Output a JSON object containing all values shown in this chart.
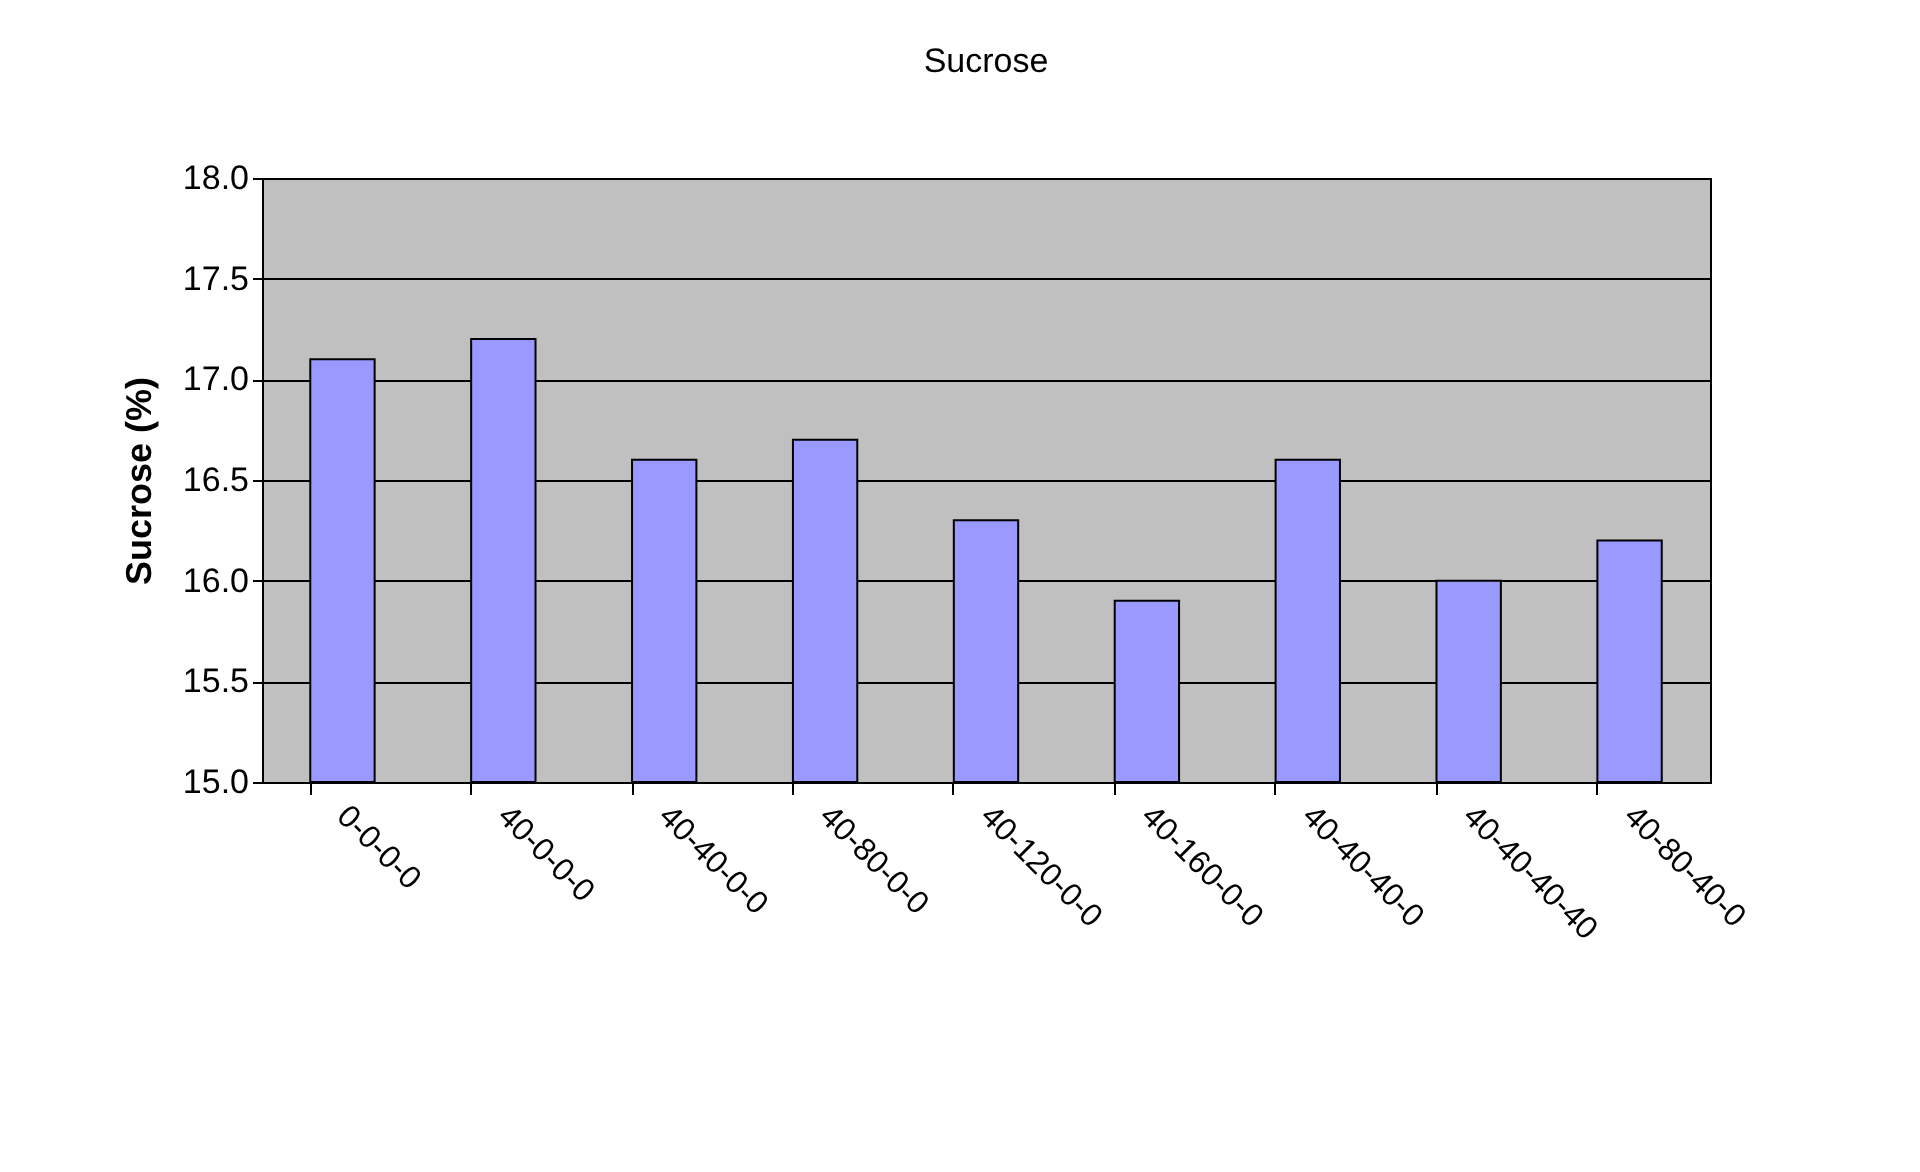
{
  "chart_data": {
    "type": "bar",
    "title": "Sucrose",
    "ylabel": "Sucrose (%)",
    "categories": [
      "0-0-0-0",
      "40-0-0-0",
      "40-40-0-0",
      "40-80-0-0",
      "40-120-0-0",
      "40-160-0-0",
      "40-40-40-0",
      "40-40-40-40",
      "40-80-40-0"
    ],
    "values": [
      17.1,
      17.2,
      16.6,
      16.7,
      16.3,
      15.9,
      16.6,
      16.0,
      16.2
    ],
    "color": "#9999ff",
    "ylim": [
      15.0,
      18.0
    ],
    "yticks": [
      {
        "value": 15.0,
        "label": "15.0"
      },
      {
        "value": 15.5,
        "label": "15.5"
      },
      {
        "value": 16.0,
        "label": "16.0"
      },
      {
        "value": 16.5,
        "label": "16.5"
      },
      {
        "value": 17.0,
        "label": "17.0"
      },
      {
        "value": 17.5,
        "label": "17.5"
      },
      {
        "value": 18.0,
        "label": "18.0"
      }
    ],
    "grid": "y"
  }
}
